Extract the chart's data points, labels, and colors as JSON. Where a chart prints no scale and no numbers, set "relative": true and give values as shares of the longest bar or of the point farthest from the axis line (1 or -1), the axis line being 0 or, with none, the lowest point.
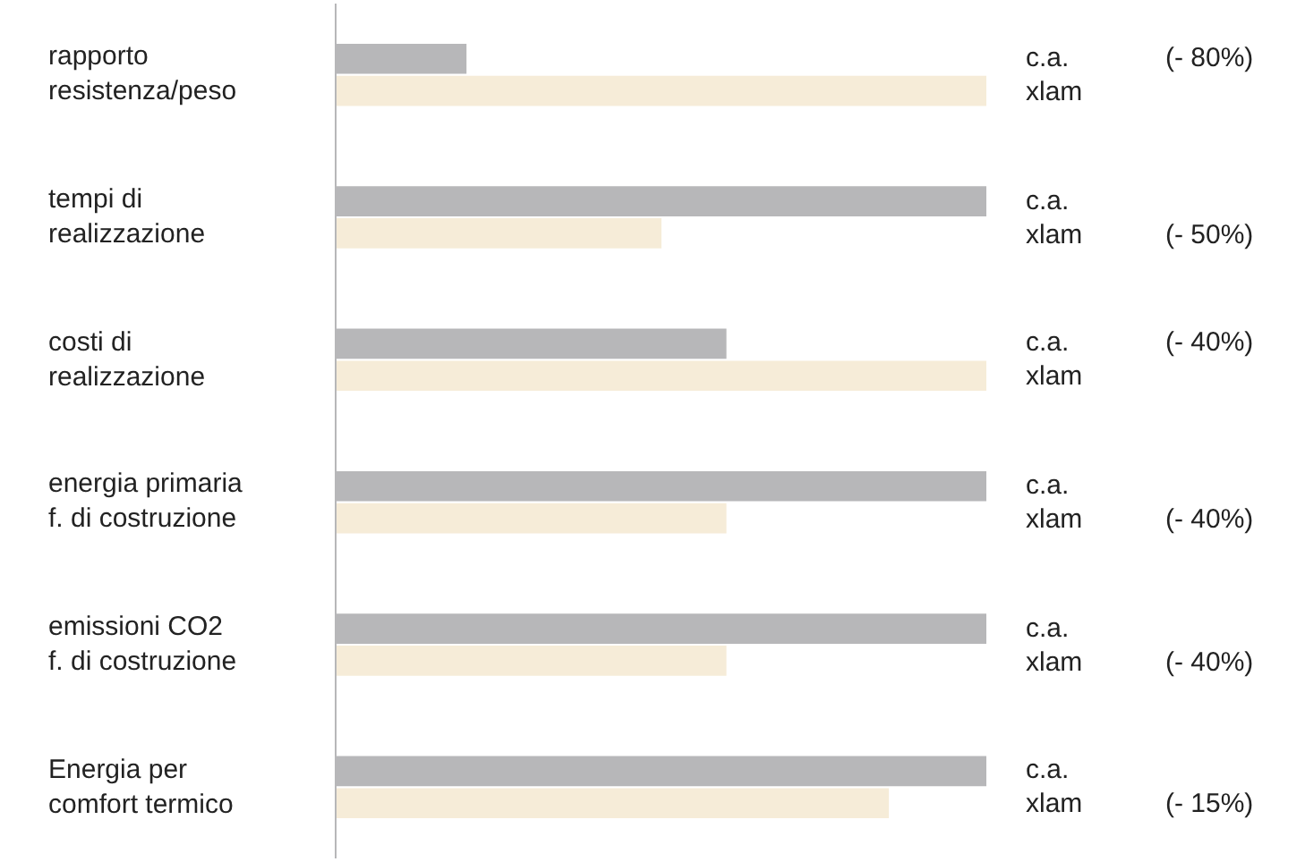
{
  "chart_data": {
    "type": "bar",
    "orientation": "horizontal",
    "relative": true,
    "legend": false,
    "categories": [
      "rapporto\nresistenza/peso",
      "tempi di\nrealizzazione",
      "costi di\nrealizzazione",
      "energia primaria\nf. di costruzione",
      "emissioni CO2\nf. di costruzione",
      "Energia per\ncomfort termico"
    ],
    "series": [
      {
        "name": "c.a.",
        "color": "#b7b7b9",
        "values": [
          0.2,
          1,
          0.6,
          1,
          1,
          1
        ]
      },
      {
        "name": "xlam",
        "color": "#f6ecd8",
        "values": [
          1,
          0.5,
          1,
          0.6,
          0.6,
          0.85
        ]
      }
    ],
    "annotations": [
      "(- 80%)",
      "(- 50%)",
      "(- 40%)",
      "(- 40%)",
      "(- 40%)",
      "(- 15%)"
    ]
  }
}
